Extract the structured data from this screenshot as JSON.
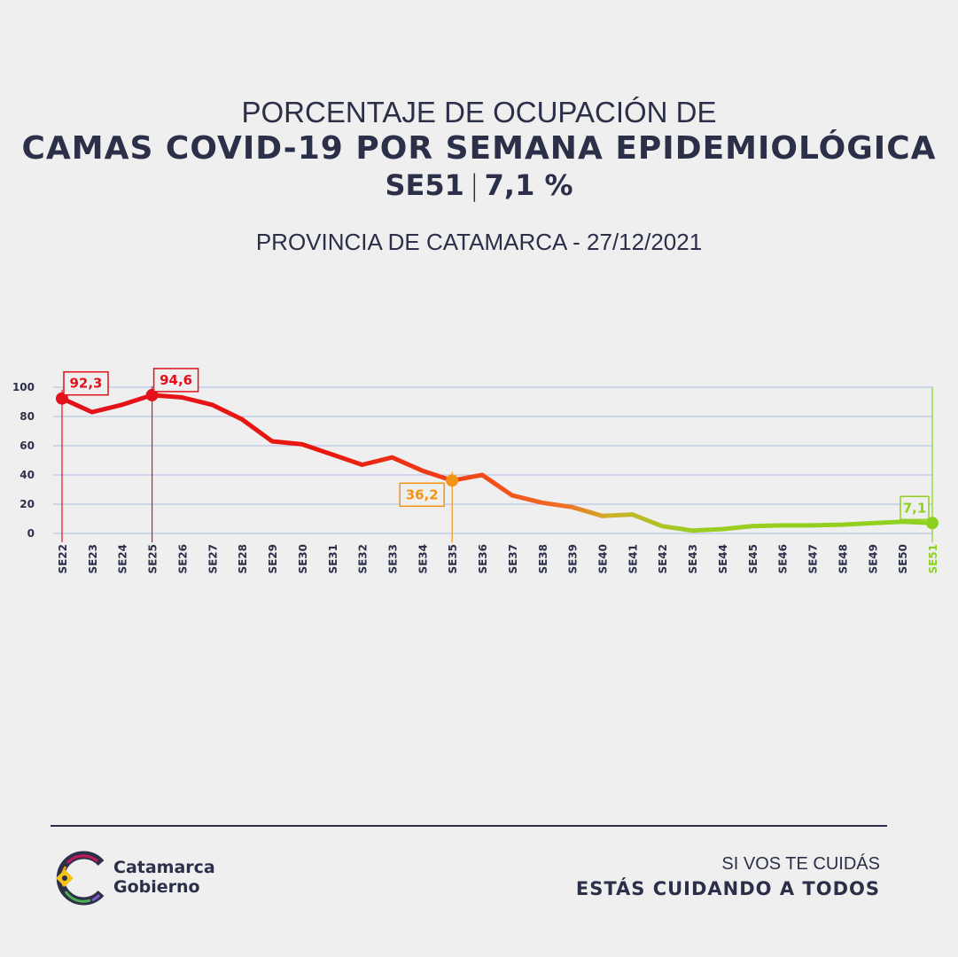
{
  "header": {
    "line1": "PORCENTAJE DE OCUPACIÓN DE",
    "line2": "CAMAS COVID-19 POR SEMANA EPIDEMIOLÓGICA",
    "line3_week": "SE51",
    "line3_sep": "|",
    "line3_value": "7,1 %",
    "subtitle": "PROVINCIA DE CATAMARCA - 27/12/2021"
  },
  "chart_data": {
    "type": "line",
    "title": "PORCENTAJE DE OCUPACIÓN DE CAMAS COVID-19 POR SEMANA EPIDEMIOLÓGICA",
    "categories": [
      "SE22",
      "SE23",
      "SE24",
      "SE25",
      "SE26",
      "SE27",
      "SE28",
      "SE29",
      "SE30",
      "SE31",
      "SE32",
      "SE33",
      "SE34",
      "SE35",
      "SE36",
      "SE37",
      "SE38",
      "SE39",
      "SE40",
      "SE41",
      "SE42",
      "SE43",
      "SE44",
      "SE45",
      "SE46",
      "SE47",
      "SE48",
      "SE49",
      "SE50",
      "SE51"
    ],
    "values": [
      92.3,
      83,
      88,
      94.6,
      93,
      88,
      78,
      63,
      61,
      54,
      47,
      52,
      43,
      36.2,
      40,
      26,
      21,
      18,
      12,
      13,
      5,
      2,
      3,
      5,
      5.5,
      5.5,
      6,
      7,
      8,
      7.1
    ],
    "yticks": [
      0,
      20,
      40,
      60,
      80,
      100
    ],
    "ylim": [
      0,
      100
    ],
    "xlabel": "",
    "ylabel": "",
    "annotations": [
      {
        "index": 0,
        "label": "92,3",
        "color": "#e3111b"
      },
      {
        "index": 3,
        "label": "94,6",
        "color": "#e3111b"
      },
      {
        "index": 13,
        "label": "36,2",
        "color": "#f39416"
      },
      {
        "index": 29,
        "label": "7,1",
        "color": "#8ed11d"
      }
    ],
    "colors": {
      "high": "#e3111b",
      "mid": "#f25a12",
      "low": "#8ed11d",
      "grid": "#a9bce0",
      "axis_text": "#2b2f47"
    }
  },
  "logo": {
    "line1": "Catamarca",
    "line2": "Gobierno"
  },
  "footer": {
    "slogan1": "SI VOS TE CUIDÁS",
    "slogan2": "ESTÁS CUIDANDO A TODOS"
  }
}
